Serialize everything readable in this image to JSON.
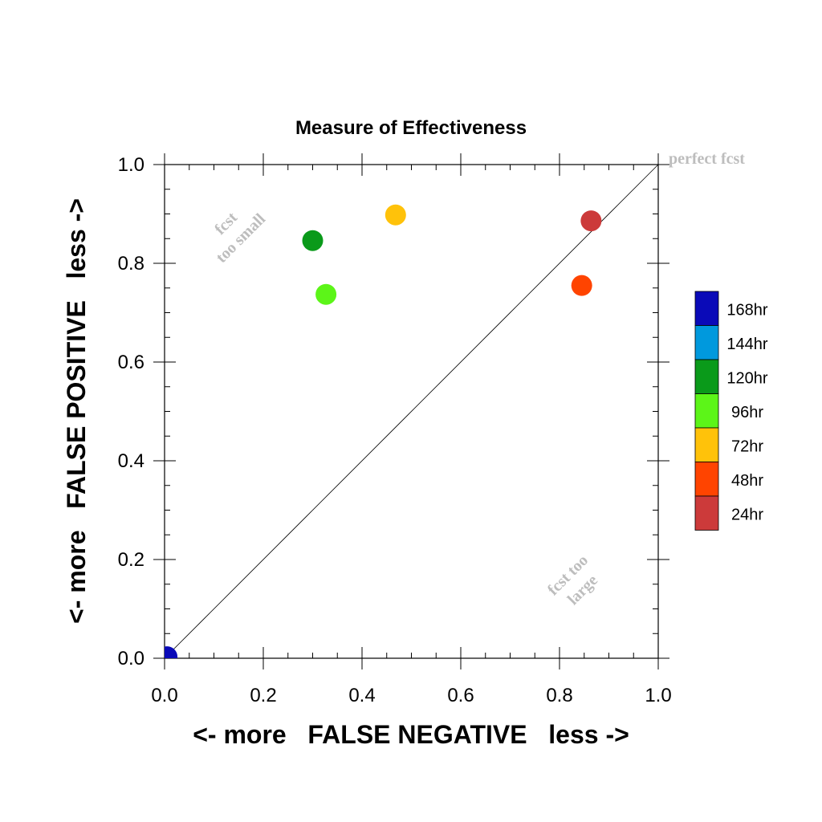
{
  "chart_data": {
    "type": "scatter",
    "title": "Measure of Effectiveness",
    "xlabel": "<- more   FALSE NEGATIVE   less ->",
    "ylabel": "<- more   FALSE POSITIVE   less ->",
    "xlim": [
      0.0,
      1.0
    ],
    "ylim": [
      0.0,
      1.0
    ],
    "x_ticks": [
      "0.0",
      "0.2",
      "0.4",
      "0.6",
      "0.8",
      "1.0"
    ],
    "y_ticks": [
      "0.0",
      "0.2",
      "0.4",
      "0.6",
      "0.8",
      "1.0"
    ],
    "grid": false,
    "reference_line": {
      "from": [
        0,
        0
      ],
      "to": [
        1,
        1
      ]
    },
    "annotations": {
      "perfect": "perfect fcst",
      "small_line1": "fcst",
      "small_line2": "too small",
      "large_line1": "fcst too",
      "large_line2": "large"
    },
    "legend_position": "right",
    "series": [
      {
        "name": "168hr",
        "color": "#0a0ab8",
        "x": 0.005,
        "y": 0.003
      },
      {
        "name": "144hr",
        "color": "#0099dd",
        "x": null,
        "y": null
      },
      {
        "name": "120hr",
        "color": "#0a9a1a",
        "x": 0.3,
        "y": 0.846
      },
      {
        "name": "96hr",
        "color": "#5cf518",
        "x": 0.327,
        "y": 0.737
      },
      {
        "name": "72hr",
        "color": "#ffc20a",
        "x": 0.468,
        "y": 0.898
      },
      {
        "name": "48hr",
        "color": "#ff4400",
        "x": 0.845,
        "y": 0.755
      },
      {
        "name": "24hr",
        "color": "#cc3a3a",
        "x": 0.864,
        "y": 0.886
      }
    ]
  }
}
